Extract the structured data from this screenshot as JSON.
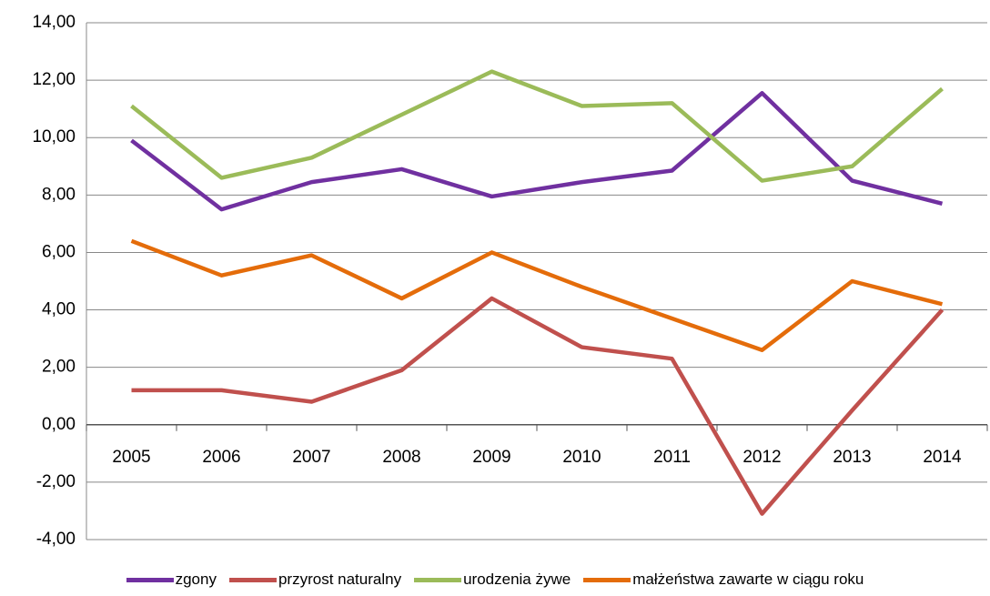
{
  "chart_data": {
    "type": "line",
    "categories": [
      "2005",
      "2006",
      "2007",
      "2008",
      "2009",
      "2010",
      "2011",
      "2012",
      "2013",
      "2014"
    ],
    "series": [
      {
        "name": "zgony",
        "color": "#7030a0",
        "values": [
          9.9,
          7.5,
          8.45,
          8.9,
          7.95,
          8.45,
          8.85,
          11.55,
          8.5,
          7.7
        ]
      },
      {
        "name": "przyrost naturalny",
        "color": "#c0504d",
        "values": [
          1.2,
          1.2,
          0.8,
          1.9,
          4.4,
          2.7,
          2.3,
          -3.1,
          0.5,
          4.0
        ]
      },
      {
        "name": "urodzenia żywe",
        "color": "#9bbb59",
        "values": [
          11.1,
          8.6,
          9.3,
          10.8,
          12.3,
          11.1,
          11.2,
          8.5,
          9.0,
          11.7
        ]
      },
      {
        "name": "małżeństwa zawarte w ciągu roku",
        "color": "#e46c0a",
        "values": [
          6.4,
          5.2,
          5.9,
          4.4,
          6.0,
          4.8,
          3.7,
          2.6,
          5.0,
          4.2
        ]
      }
    ],
    "ylim": [
      -4,
      14
    ],
    "yticks": [
      {
        "value": -4,
        "label": "-4,00"
      },
      {
        "value": -2,
        "label": "-2,00"
      },
      {
        "value": 0,
        "label": "0,00"
      },
      {
        "value": 2,
        "label": "2,00"
      },
      {
        "value": 4,
        "label": "4,00"
      },
      {
        "value": 6,
        "label": "6,00"
      },
      {
        "value": 8,
        "label": "8,00"
      },
      {
        "value": 10,
        "label": "10,00"
      },
      {
        "value": 12,
        "label": "12,00"
      },
      {
        "value": 14,
        "label": "14,00"
      }
    ],
    "grid": true
  }
}
